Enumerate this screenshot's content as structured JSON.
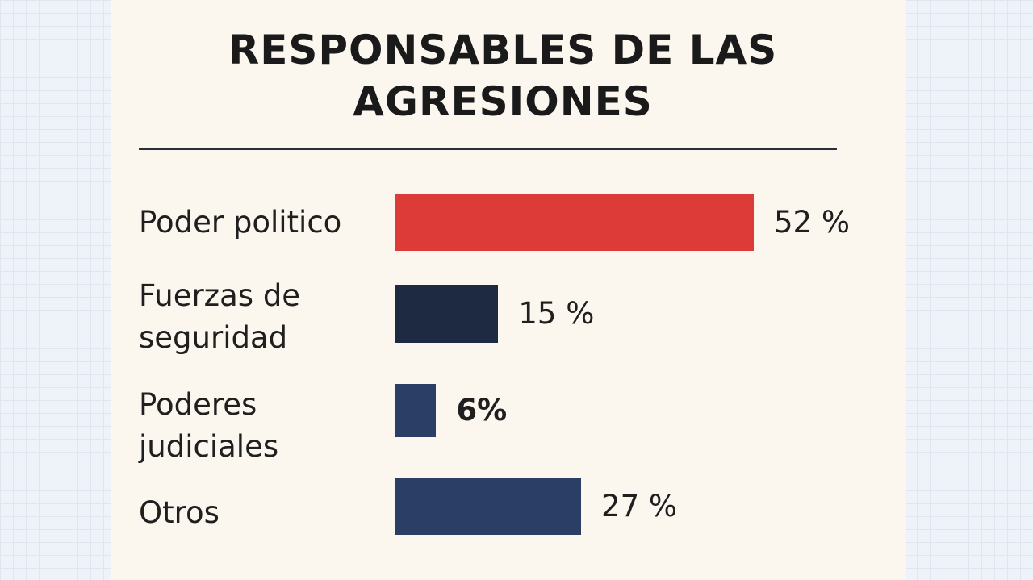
{
  "chart_data": {
    "type": "bar",
    "orientation": "horizontal",
    "title_lines": [
      "RESPONSABLES DE LAS",
      "AGRESIONES"
    ],
    "categories": [
      "Poder politico",
      "Fuerzas de\nseguridad",
      "Poderes\njudiciales",
      "Otros"
    ],
    "values": [
      52,
      15,
      6,
      27
    ],
    "value_labels": [
      "52 %",
      "15 %",
      "6%",
      "27 %"
    ],
    "colors": [
      "#dc3b38",
      "#1e2a42",
      "#2b3f66",
      "#2b3f66"
    ],
    "unit": "%",
    "xlim": [
      0,
      52
    ],
    "xlabel": "",
    "ylabel": "",
    "grid": false
  }
}
